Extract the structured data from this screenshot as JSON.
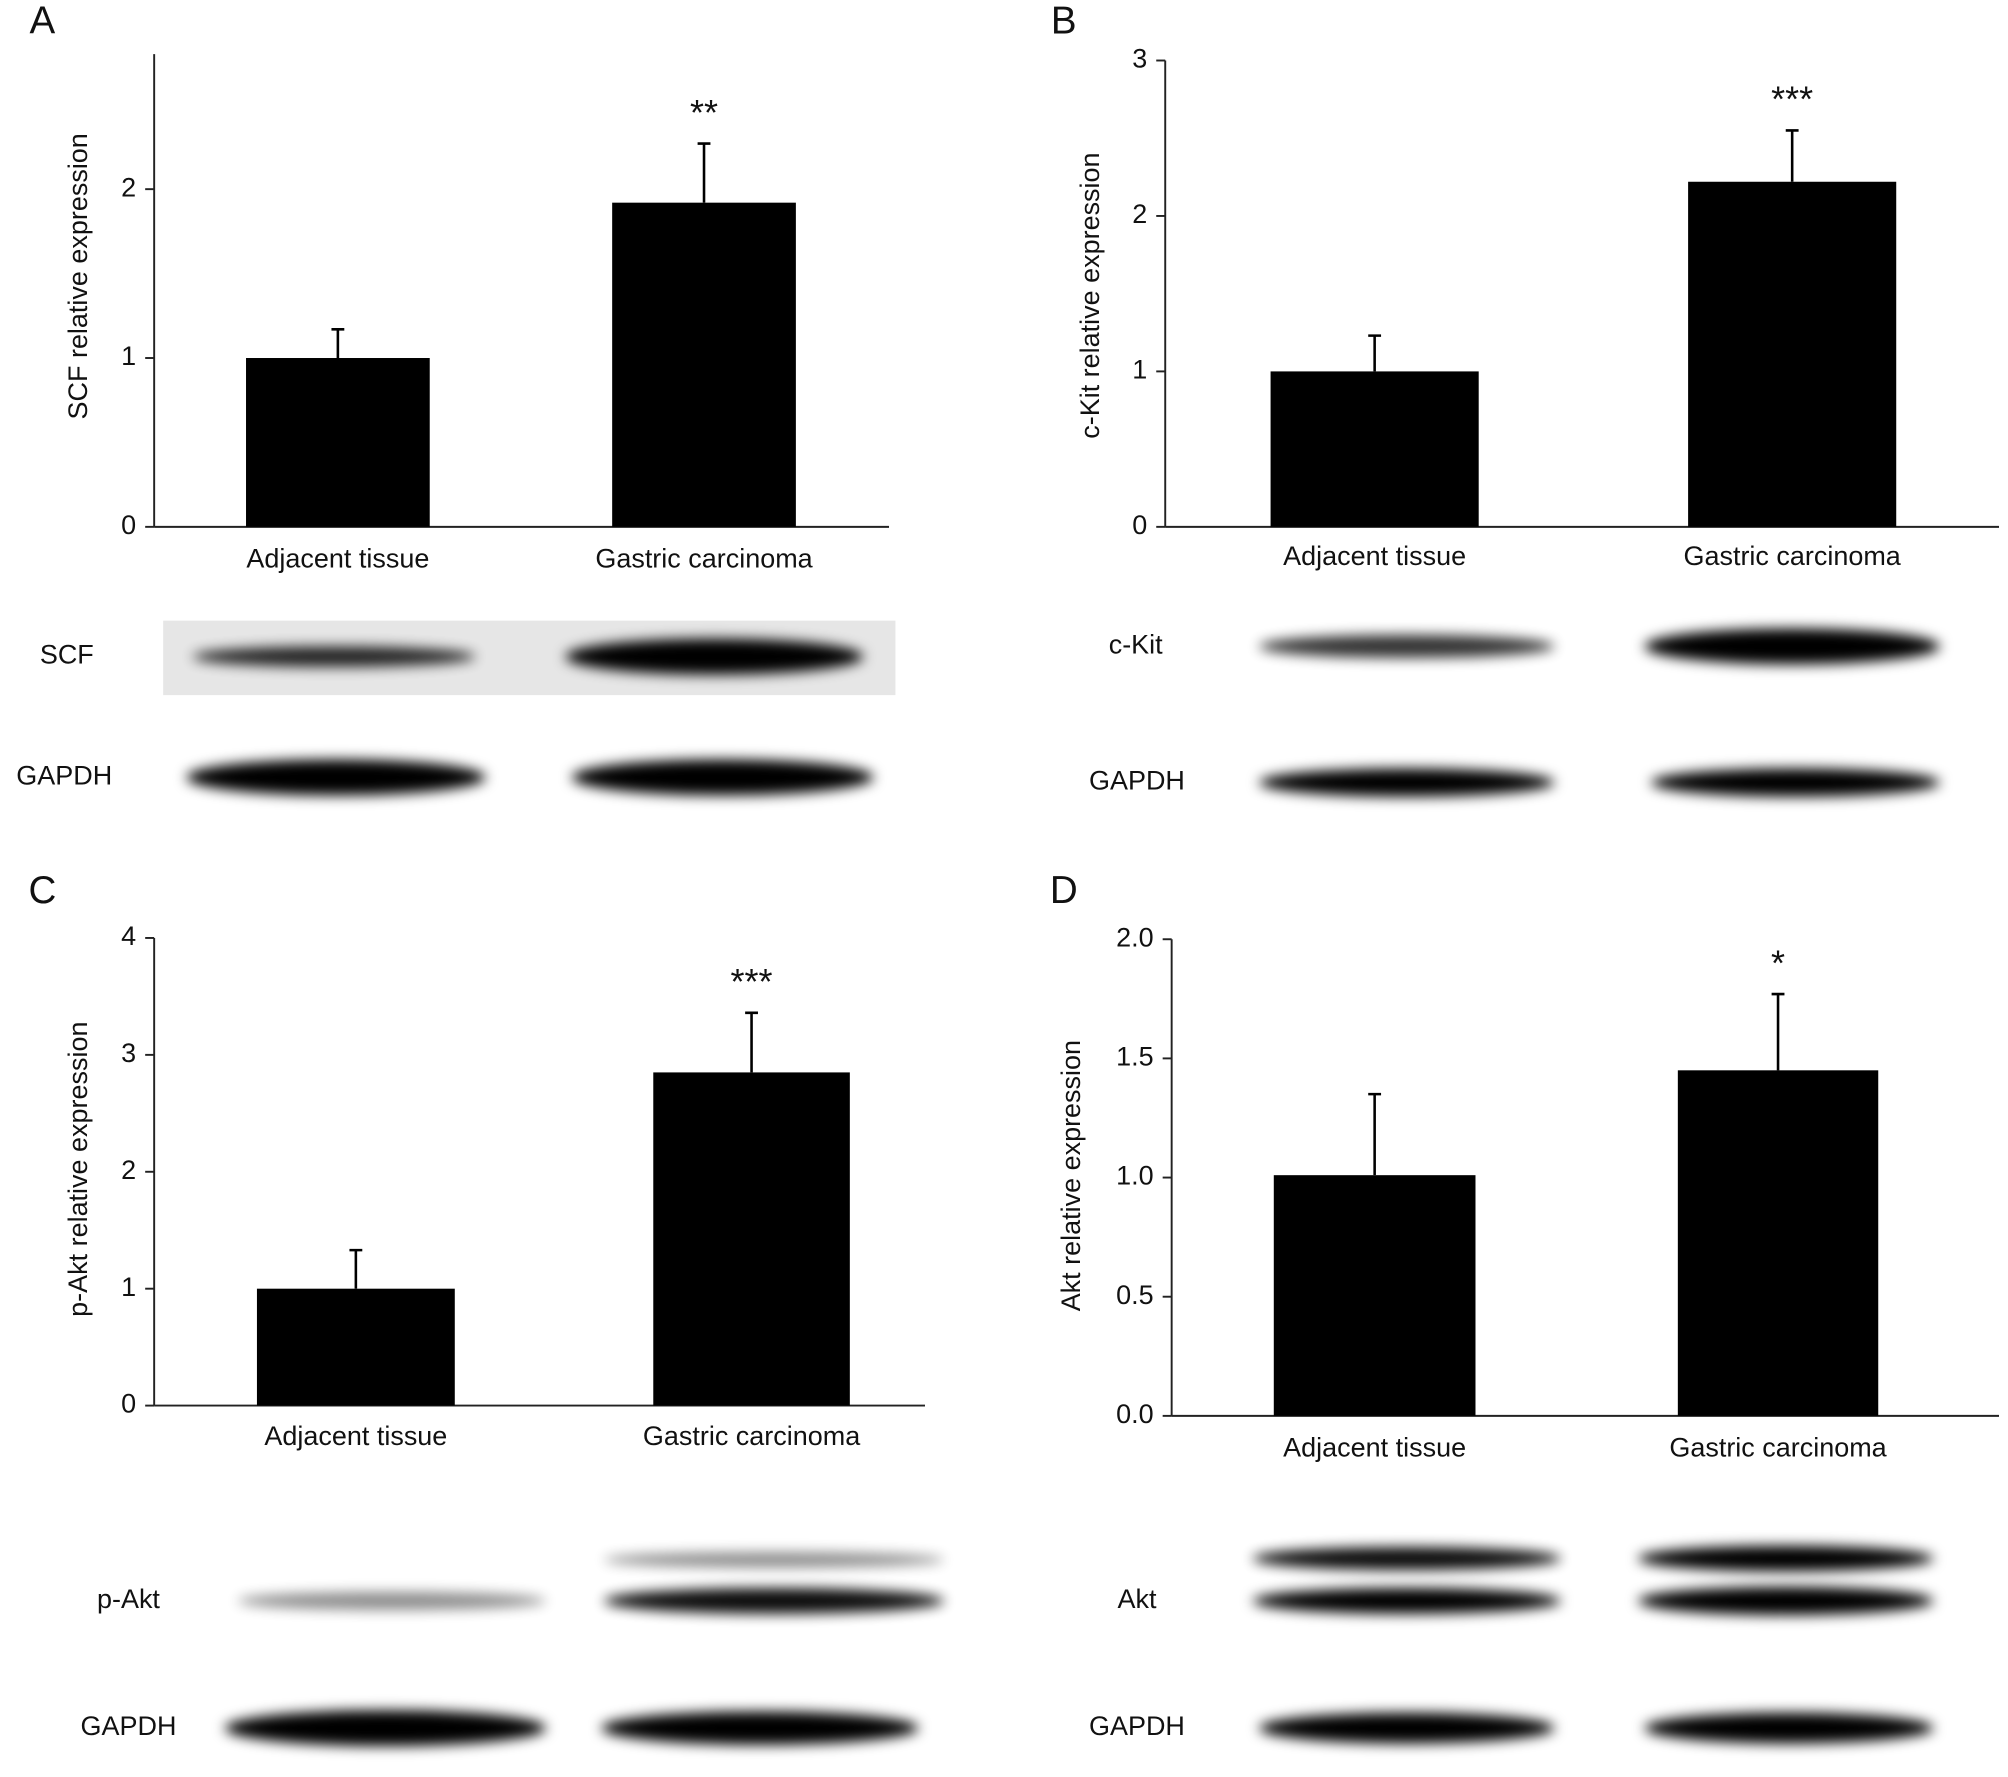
{
  "chart_data": [
    {
      "type": "bar",
      "panel_label": "A",
      "ylabel": "SCF relative expression",
      "categories": [
        "Adjacent tissue",
        "Gastric carcinoma"
      ],
      "values": [
        1.0,
        1.92
      ],
      "errors": [
        0.17,
        0.35
      ],
      "annotations": [
        null,
        "**"
      ],
      "color": "#000000",
      "ylim": [
        0,
        2.8
      ],
      "yticks": [
        0,
        1,
        2
      ],
      "blots": [
        "SCF",
        "GAPDH"
      ]
    },
    {
      "type": "bar",
      "panel_label": "B",
      "ylabel": "c-Kit relative expression",
      "categories": [
        "Adjacent tissue",
        "Gastric carcinoma"
      ],
      "values": [
        1.0,
        2.22
      ],
      "errors": [
        0.23,
        0.33
      ],
      "annotations": [
        null,
        "***"
      ],
      "color": "#000000",
      "ylim": [
        0,
        3
      ],
      "yticks": [
        0,
        1,
        2,
        3
      ],
      "blots": [
        "c-Kit",
        "GAPDH"
      ]
    },
    {
      "type": "bar",
      "panel_label": "C",
      "ylabel": "p-Akt relative expression",
      "categories": [
        "Adjacent tissue",
        "Gastric carcinoma"
      ],
      "values": [
        1.0,
        2.85
      ],
      "errors": [
        0.33,
        0.51
      ],
      "annotations": [
        null,
        "***"
      ],
      "color": "#000000",
      "ylim": [
        0,
        4
      ],
      "yticks": [
        0,
        1,
        2,
        3,
        4
      ],
      "blots": [
        "p-Akt",
        "GAPDH"
      ]
    },
    {
      "type": "bar",
      "panel_label": "D",
      "ylabel": "Akt relative expression",
      "categories": [
        "Adjacent tissue",
        "Gastric carcinoma"
      ],
      "values": [
        1.01,
        1.45
      ],
      "errors": [
        0.34,
        0.32
      ],
      "annotations": [
        null,
        "*"
      ],
      "color": "#000000",
      "ylim": [
        0,
        2
      ],
      "yticks": [
        {
          "value": 0,
          "label": "0.0"
        },
        0.5,
        {
          "value": 1,
          "label": "1.0"
        },
        1.5,
        {
          "value": 2,
          "label": "2.0"
        }
      ],
      "blots": [
        "Akt",
        "GAPDH"
      ]
    }
  ]
}
